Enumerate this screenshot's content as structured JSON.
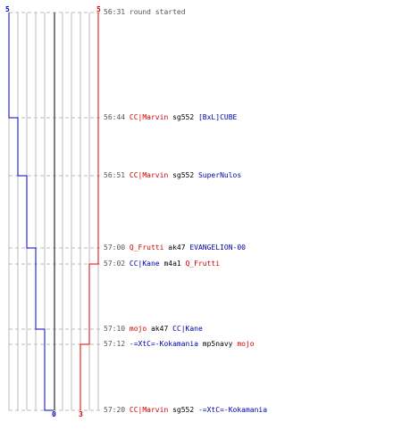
{
  "colors": {
    "blue_team": "#0000cc",
    "red_team": "#dd0000",
    "grid": "#bbbbbb",
    "dash": "#bbbbbb"
  },
  "scores": {
    "blue_start": "5",
    "red_start": "5",
    "blue_end": "0",
    "red_end": "3"
  },
  "events": [
    {
      "time": "56:31",
      "parts": [
        {
          "text": "round started",
          "color": "gray"
        }
      ]
    },
    {
      "time": "56:44",
      "parts": [
        {
          "text": "CC|Marvin",
          "color": "red"
        },
        {
          "text": " sg552 ",
          "color": "black"
        },
        {
          "text": "[BxL]CUBE",
          "color": "blue"
        }
      ]
    },
    {
      "time": "56:51",
      "parts": [
        {
          "text": "CC|Marvin",
          "color": "red"
        },
        {
          "text": " sg552 ",
          "color": "black"
        },
        {
          "text": "SuperNulos",
          "color": "blue"
        }
      ]
    },
    {
      "time": "57:00",
      "parts": [
        {
          "text": "Q_Frutti",
          "color": "red"
        },
        {
          "text": " ak47 ",
          "color": "black"
        },
        {
          "text": "EVANGELION-00",
          "color": "blue"
        }
      ]
    },
    {
      "time": "57:02",
      "parts": [
        {
          "text": "CC|Kane",
          "color": "blue"
        },
        {
          "text": " m4a1 ",
          "color": "black"
        },
        {
          "text": "Q_Frutti",
          "color": "red"
        }
      ]
    },
    {
      "time": "57:10",
      "parts": [
        {
          "text": "mojo",
          "color": "red"
        },
        {
          "text": " ak47 ",
          "color": "black"
        },
        {
          "text": "CC|Kane",
          "color": "blue"
        }
      ]
    },
    {
      "time": "57:12",
      "parts": [
        {
          "text": "-=XtC=-Kokamania",
          "color": "blue"
        },
        {
          "text": " mp5navy ",
          "color": "black"
        },
        {
          "text": "mojo",
          "color": "red"
        }
      ]
    },
    {
      "time": "57:20",
      "parts": [
        {
          "text": "CC|Marvin",
          "color": "red"
        },
        {
          "text": " sg552 ",
          "color": "black"
        },
        {
          "text": "-=XtC=-Kokamania",
          "color": "blue"
        }
      ]
    }
  ]
}
